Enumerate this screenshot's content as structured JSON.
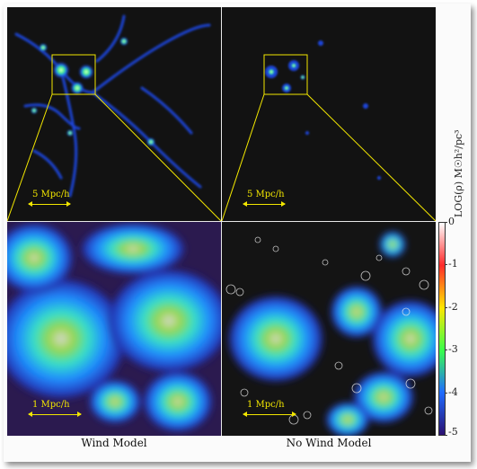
{
  "panels": {
    "top_left": {
      "scale_label": "5 Mpc/h"
    },
    "top_right": {
      "scale_label": "5 Mpc/h"
    },
    "bottom_left": {
      "scale_label": "1 Mpc/h",
      "caption": "Wind Model"
    },
    "bottom_right": {
      "scale_label": "1 Mpc/h",
      "caption": "No Wind Model"
    }
  },
  "colorbar": {
    "label": "LOG(ρ) M☉h²/pc³",
    "ticks": [
      "0",
      "-1",
      "-2",
      "-3",
      "-4",
      "-5"
    ],
    "colors": [
      "#ffffff",
      "#ff2a2a",
      "#ffe600",
      "#39ff4a",
      "#1f6bff",
      "#2a1070"
    ]
  }
}
